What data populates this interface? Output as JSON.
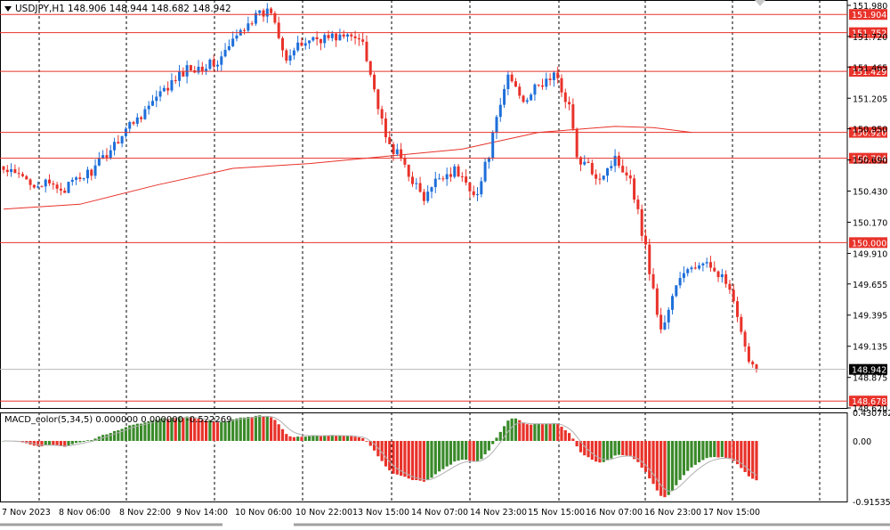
{
  "header": {
    "symbol": "USDJPY,H1",
    "ohlc": "148.906 148.944 148.682 148.942"
  },
  "macd": {
    "label": "MACD_color(5,34,5) 0.000000 0.000000 -0.522269",
    "axis_ticks": [
      "0.430782",
      "0.00",
      "-0.915358"
    ]
  },
  "colors": {
    "background": "#ffffff",
    "bull": "#1e6fd9",
    "bear": "#e8322a",
    "level_line": "#e8322a",
    "ma_line": "#e8322a",
    "macd_up": "#3a8a2a",
    "macd_down": "#e8322a",
    "signal": "#b0b0b0",
    "grid": "#000000"
  },
  "chart_data": {
    "type": "candlestick",
    "symbol": "USDJPY",
    "timeframe": "H1",
    "price_axis_ticks": [
      151.98,
      151.72,
      151.465,
      151.205,
      150.95,
      150.69,
      150.43,
      150.17,
      149.91,
      149.655,
      149.395,
      149.135,
      148.875,
      148.62
    ],
    "price_axis_labels": [
      "151.980",
      "151.720",
      "151.465",
      "151.205",
      "150.950",
      "150.690",
      "150.430",
      "150.170",
      "149.910",
      "149.655",
      "149.395",
      "149.135",
      "148.875",
      "148.620"
    ],
    "time_axis_labels": [
      "7 Nov 2023",
      "8 Nov 06:00",
      "8 Nov 22:00",
      "9 Nov 14:00",
      "10 Nov 06:00",
      "10 Nov 22:00",
      "13 Nov 15:00",
      "14 Nov 07:00",
      "14 Nov 23:00",
      "15 Nov 15:00",
      "16 Nov 07:00",
      "16 Nov 23:00",
      "17 Nov 15:00"
    ],
    "horizontal_levels": [
      {
        "value": 151.904,
        "label": "151.904"
      },
      {
        "value": 151.752,
        "label": "151.752"
      },
      {
        "value": 151.429,
        "label": "151.429"
      },
      {
        "value": 150.92,
        "label": "150.920"
      },
      {
        "value": 150.704,
        "label": "150.704"
      },
      {
        "value": 150.0,
        "label": "150.000"
      },
      {
        "value": 148.678,
        "label": "148.678"
      }
    ],
    "current_price": {
      "value": 148.942,
      "label": "148.942"
    },
    "close_path": [
      [
        0,
        150.6
      ],
      [
        8,
        150.5
      ],
      [
        16,
        150.45
      ],
      [
        24,
        150.62
      ],
      [
        32,
        150.95
      ],
      [
        40,
        151.2
      ],
      [
        48,
        151.45
      ],
      [
        56,
        151.5
      ],
      [
        64,
        151.85
      ],
      [
        70,
        151.94
      ],
      [
        74,
        151.55
      ],
      [
        80,
        151.7
      ],
      [
        88,
        151.72
      ],
      [
        94,
        151.7
      ],
      [
        100,
        150.85
      ],
      [
        104,
        150.7
      ],
      [
        110,
        150.35
      ],
      [
        114,
        150.55
      ],
      [
        118,
        150.6
      ],
      [
        124,
        150.4
      ],
      [
        127,
        150.75
      ],
      [
        132,
        151.4
      ],
      [
        136,
        151.2
      ],
      [
        140,
        151.3
      ],
      [
        144,
        151.4
      ],
      [
        148,
        151.15
      ],
      [
        150,
        150.7
      ],
      [
        156,
        150.55
      ],
      [
        160,
        150.7
      ],
      [
        164,
        150.55
      ],
      [
        168,
        149.95
      ],
      [
        172,
        149.25
      ],
      [
        176,
        149.65
      ],
      [
        180,
        149.8
      ],
      [
        186,
        149.8
      ],
      [
        190,
        149.6
      ],
      [
        194,
        149.1
      ],
      [
        197,
        148.94
      ]
    ],
    "moving_average": [
      [
        0,
        150.28
      ],
      [
        20,
        150.32
      ],
      [
        40,
        150.48
      ],
      [
        60,
        150.62
      ],
      [
        80,
        150.66
      ],
      [
        100,
        150.72
      ],
      [
        120,
        150.78
      ],
      [
        140,
        150.92
      ],
      [
        160,
        150.97
      ],
      [
        170,
        150.96
      ],
      [
        180,
        150.92
      ]
    ],
    "macd_range": [
      -0.915358,
      0.430782
    ]
  }
}
